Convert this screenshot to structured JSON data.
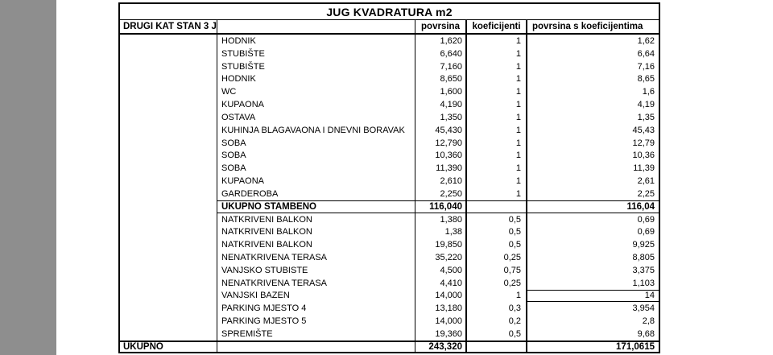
{
  "colors": {
    "page_background": "#ffffff",
    "left_strip": "#8e8e8e",
    "table_border": "#000000",
    "text": "#000000"
  },
  "table": {
    "title": "JUG KVADRATURA m2",
    "header": {
      "col1": "DRUGI KAT STAN 3 J",
      "col2": "",
      "povrsina": "povrsina",
      "koeficijenti": "koeficijenti",
      "povrsina_s_koeficijentima": "povrsina s koeficijentima"
    },
    "rows": [
      {
        "name": "HODNIK",
        "povrsina": "1,620",
        "koeficijenti": "1",
        "rezultat": "1,62",
        "subtotal": false,
        "boxed": false
      },
      {
        "name": "STUBIŠTE",
        "povrsina": "6,640",
        "koeficijenti": "1",
        "rezultat": "6,64",
        "subtotal": false,
        "boxed": false
      },
      {
        "name": "STUBIŠTE",
        "povrsina": "7,160",
        "koeficijenti": "1",
        "rezultat": "7,16",
        "subtotal": false,
        "boxed": false
      },
      {
        "name": "HODNIK",
        "povrsina": "8,650",
        "koeficijenti": "1",
        "rezultat": "8,65",
        "subtotal": false,
        "boxed": false
      },
      {
        "name": "WC",
        "povrsina": "1,600",
        "koeficijenti": "1",
        "rezultat": "1,6",
        "subtotal": false,
        "boxed": false
      },
      {
        "name": "KUPAONA",
        "povrsina": "4,190",
        "koeficijenti": "1",
        "rezultat": "4,19",
        "subtotal": false,
        "boxed": false
      },
      {
        "name": "OSTAVA",
        "povrsina": "1,350",
        "koeficijenti": "1",
        "rezultat": "1,35",
        "subtotal": false,
        "boxed": false
      },
      {
        "name": "KUHINJA BLAGAVAONA I DNEVNI BORAVAK",
        "povrsina": "45,430",
        "koeficijenti": "1",
        "rezultat": "45,43",
        "subtotal": false,
        "boxed": false
      },
      {
        "name": "SOBA",
        "povrsina": "12,790",
        "koeficijenti": "1",
        "rezultat": "12,79",
        "subtotal": false,
        "boxed": false
      },
      {
        "name": "SOBA",
        "povrsina": "10,360",
        "koeficijenti": "1",
        "rezultat": "10,36",
        "subtotal": false,
        "boxed": false
      },
      {
        "name": "SOBA",
        "povrsina": "11,390",
        "koeficijenti": "1",
        "rezultat": "11,39",
        "subtotal": false,
        "boxed": false
      },
      {
        "name": "KUPAONA",
        "povrsina": "2,610",
        "koeficijenti": "1",
        "rezultat": "2,61",
        "subtotal": false,
        "boxed": false
      },
      {
        "name": "GARDEROBA",
        "povrsina": "2,250",
        "koeficijenti": "1",
        "rezultat": "2,25",
        "subtotal": false,
        "boxed": false
      },
      {
        "name": "UKUPNO STAMBENO",
        "povrsina": "116,040",
        "koeficijenti": "",
        "rezultat": "116,04",
        "subtotal": true,
        "boxed": false
      },
      {
        "name": "NATKRIVENI BALKON",
        "povrsina": "1,380",
        "koeficijenti": "0,5",
        "rezultat": "0,69",
        "subtotal": false,
        "boxed": false
      },
      {
        "name": "NATKRIVENI BALKON",
        "povrsina": "1,38",
        "koeficijenti": "0,5",
        "rezultat": "0,69",
        "subtotal": false,
        "boxed": false
      },
      {
        "name": "NATKRIVENI BALKON",
        "povrsina": "19,850",
        "koeficijenti": "0,5",
        "rezultat": "9,925",
        "subtotal": false,
        "boxed": false
      },
      {
        "name": "NENATKRIVENA TERASA",
        "povrsina": "35,220",
        "koeficijenti": "0,25",
        "rezultat": "8,805",
        "subtotal": false,
        "boxed": false
      },
      {
        "name": "VANJSKO STUBISTE",
        "povrsina": "4,500",
        "koeficijenti": "0,75",
        "rezultat": "3,375",
        "subtotal": false,
        "boxed": false
      },
      {
        "name": "NENATKRIVENA TERASA",
        "povrsina": "4,410",
        "koeficijenti": "0,25",
        "rezultat": "1,103",
        "subtotal": false,
        "boxed": false
      },
      {
        "name": "VANJSKI BAZEN",
        "povrsina": "14,000",
        "koeficijenti": "1",
        "rezultat": "14",
        "subtotal": false,
        "boxed": true
      },
      {
        "name": "PARKING MJESTO 4",
        "povrsina": "13,180",
        "koeficijenti": "0,3",
        "rezultat": "3,954",
        "subtotal": false,
        "boxed": false
      },
      {
        "name": "PARKING MJESTO 5",
        "povrsina": "14,000",
        "koeficijenti": "0,2",
        "rezultat": "2,8",
        "subtotal": false,
        "boxed": false
      },
      {
        "name": "SPREMIŠTE",
        "povrsina": "19,360",
        "koeficijenti": "0,5",
        "rezultat": "9,68",
        "subtotal": false,
        "boxed": false
      }
    ],
    "footer": {
      "label": "UKUPNO",
      "col2": "",
      "povrsina": "243,320",
      "koeficijenti": "",
      "rezultat": "171,0615"
    }
  }
}
